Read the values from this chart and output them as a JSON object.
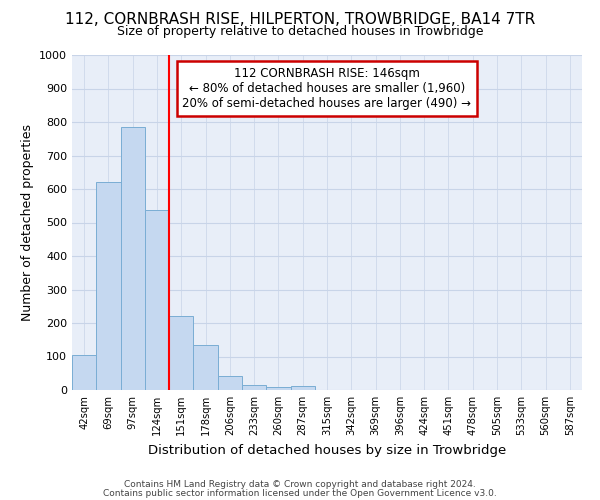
{
  "title": "112, CORNBRASH RISE, HILPERTON, TROWBRIDGE, BA14 7TR",
  "subtitle": "Size of property relative to detached houses in Trowbridge",
  "xlabel": "Distribution of detached houses by size in Trowbridge",
  "ylabel": "Number of detached properties",
  "bar_color": "#c5d8f0",
  "bar_edge_color": "#7aadd4",
  "categories": [
    "42sqm",
    "69sqm",
    "97sqm",
    "124sqm",
    "151sqm",
    "178sqm",
    "206sqm",
    "233sqm",
    "260sqm",
    "287sqm",
    "315sqm",
    "342sqm",
    "369sqm",
    "396sqm",
    "424sqm",
    "451sqm",
    "478sqm",
    "505sqm",
    "533sqm",
    "560sqm",
    "587sqm"
  ],
  "values": [
    103,
    622,
    785,
    538,
    222,
    133,
    43,
    16,
    10,
    11,
    0,
    0,
    0,
    0,
    0,
    0,
    0,
    0,
    0,
    0,
    0
  ],
  "ylim": [
    0,
    1000
  ],
  "yticks": [
    0,
    100,
    200,
    300,
    400,
    500,
    600,
    700,
    800,
    900,
    1000
  ],
  "vline_x": 3.5,
  "annotation_text": "112 CORNBRASH RISE: 146sqm\n← 80% of detached houses are smaller (1,960)\n20% of semi-detached houses are larger (490) →",
  "annotation_box_color": "#ffffff",
  "annotation_box_edge": "#cc0000",
  "footer1": "Contains HM Land Registry data © Crown copyright and database right 2024.",
  "footer2": "Contains public sector information licensed under the Open Government Licence v3.0.",
  "bg_color": "#e8eef8",
  "grid_color": "#c8d4e8",
  "title_fontsize": 11,
  "subtitle_fontsize": 9,
  "ylabel_fontsize": 9,
  "xlabel_fontsize": 9.5
}
